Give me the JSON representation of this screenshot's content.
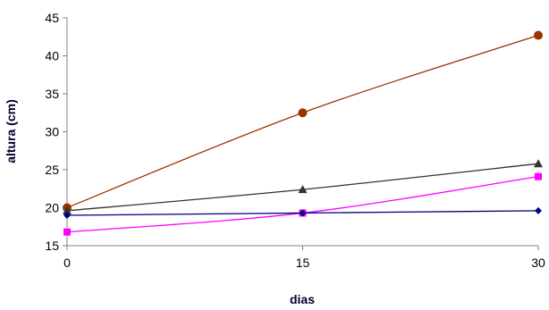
{
  "chart_data": {
    "type": "line",
    "title": "",
    "xlabel": "dias",
    "ylabel": "altura (cm)",
    "x": [
      0,
      15,
      30
    ],
    "xlim": [
      0,
      30
    ],
    "ylim": [
      15,
      45
    ],
    "x_ticks": [
      0,
      15,
      30
    ],
    "y_ticks": [
      15,
      20,
      25,
      30,
      35,
      40,
      45
    ],
    "grid": false,
    "legend": "none",
    "series": [
      {
        "values": [
          20.0,
          32.5,
          42.7
        ],
        "color": "#993300",
        "marker": "circle"
      },
      {
        "values": [
          19.6,
          22.4,
          25.8
        ],
        "color": "#333333",
        "marker": "triangle"
      },
      {
        "values": [
          16.8,
          19.3,
          24.1
        ],
        "color": "#ff00ff",
        "marker": "square"
      },
      {
        "values": [
          19.0,
          19.3,
          19.6
        ],
        "color": "#000080",
        "marker": "diamond"
      }
    ]
  }
}
